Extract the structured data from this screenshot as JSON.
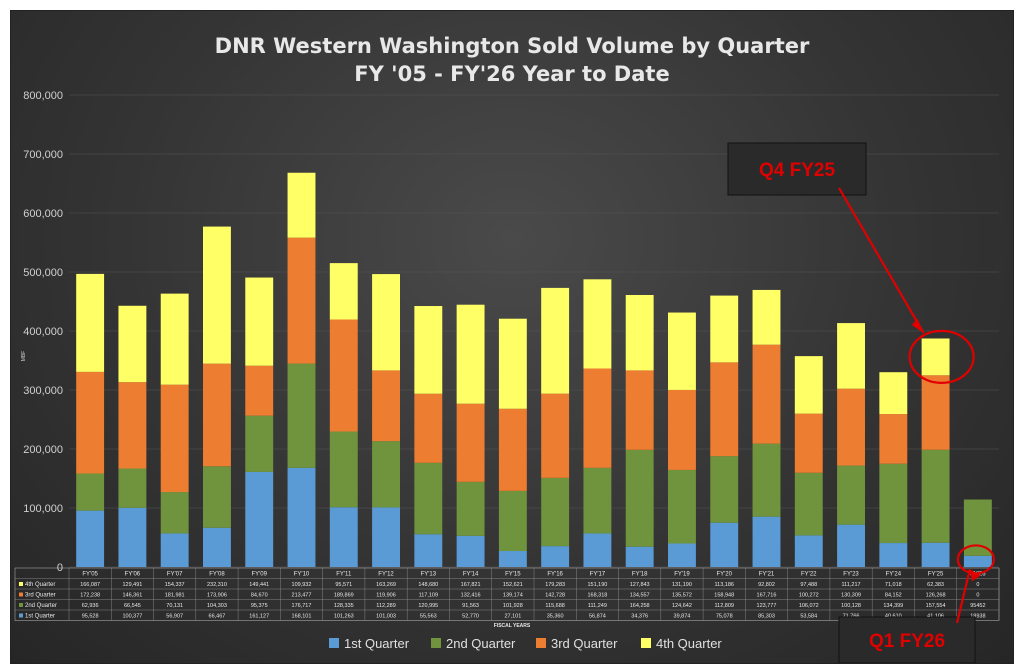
{
  "chart_data": {
    "type": "bar",
    "stacked": true,
    "title": "DNR Western Washington Sold Volume by Quarter",
    "subtitle": "FY '05 - FY'26 Year to Date",
    "ylabel": "MBF",
    "xlabel": "FISCAL YEARS",
    "ylim": [
      0,
      800000
    ],
    "yticks": [
      "0",
      "100,000",
      "200,000",
      "300,000",
      "400,000",
      "500,000",
      "600,000",
      "700,000",
      "800,000"
    ],
    "categories": [
      "FY'05",
      "FY'06",
      "FY'07",
      "FY'08",
      "FY'09",
      "FY'10",
      "FY'11",
      "FY'12",
      "FY'13",
      "FY'14",
      "FY'15",
      "FY'16",
      "FY'17",
      "FY'18",
      "FY'19",
      "FY'20",
      "FY'21",
      "FY'22",
      "FY'23",
      "FY'24",
      "FY'25",
      "FY'26"
    ],
    "series": [
      {
        "name": "1st Quarter",
        "color": "#5b9bd5",
        "values": [
          95528,
          100377,
          56907,
          66467,
          161127,
          168101,
          101263,
          101003,
          55563,
          52770,
          27101,
          35360,
          56874,
          34376,
          39874,
          75078,
          85303,
          53584,
          71766,
          40610,
          41106,
          18938
        ],
        "labels": [
          "95,528",
          "100,377",
          "56,907",
          "66,467",
          "161,127",
          "168,101",
          "101,263",
          "101,003",
          "55,563",
          "52,770",
          "27,101",
          "35,360",
          "56,874",
          "34,376",
          "39,874",
          "75,078",
          "85,303",
          "53,584",
          "71,766",
          "40,610",
          "41,106",
          "18938"
        ]
      },
      {
        "name": "2nd Quarter",
        "color": "#70943e",
        "values": [
          62936,
          66545,
          70131,
          104303,
          95375,
          176717,
          128335,
          112289,
          120995,
          91563,
          101928,
          115688,
          111249,
          164258,
          124642,
          112809,
          123777,
          106072,
          100128,
          134399,
          157554,
          95452
        ],
        "labels": [
          "62,936",
          "66,545",
          "70,131",
          "104,303",
          "95,375",
          "176,717",
          "128,335",
          "112,289",
          "120,995",
          "91,563",
          "101,928",
          "115,688",
          "111,249",
          "164,258",
          "124,642",
          "112,809",
          "123,777",
          "106,072",
          "100,128",
          "134,399",
          "157,554",
          "95452"
        ]
      },
      {
        "name": "3rd Quarter",
        "color": "#ed7d31",
        "values": [
          172238,
          146361,
          181981,
          173906,
          84670,
          213477,
          189869,
          119906,
          117109,
          132416,
          139174,
          142728,
          168318,
          134557,
          135572,
          158948,
          167716,
          100272,
          130309,
          84152,
          126268,
          0
        ],
        "labels": [
          "172,238",
          "146,361",
          "181,981",
          "173,906",
          "84,670",
          "213,477",
          "189,869",
          "119,906",
          "117,109",
          "132,416",
          "139,174",
          "142,728",
          "168,318",
          "134,557",
          "135,572",
          "158,948",
          "167,716",
          "100,272",
          "130,309",
          "84,152",
          "126,268",
          "0"
        ]
      },
      {
        "name": "4th Quarter",
        "color": "#ffff66",
        "values": [
          166087,
          129491,
          154337,
          232310,
          149441,
          109932,
          95571,
          163269,
          148680,
          167821,
          152621,
          179283,
          151190,
          127843,
          131190,
          113186,
          92802,
          97488,
          111217,
          71018,
          62383,
          0
        ],
        "labels": [
          "166,087",
          "129,491",
          "154,337",
          "232,310",
          "149,441",
          "109,932",
          "95,571",
          "163,269",
          "148,680",
          "167,821",
          "152,621",
          "179,283",
          "151,190",
          "127,843",
          "131,190",
          "113,186",
          "92,802",
          "97,488",
          "111,217",
          "71,018",
          "62,383",
          "0"
        ]
      }
    ],
    "table_rows_top_to_bottom": [
      "4th Quarter",
      "3rd Quarter",
      "2nd Quarter",
      "1st Quarter"
    ],
    "annotations": [
      {
        "text": "Q4 FY25",
        "target_category": "FY'25",
        "target_series": "4th Quarter"
      },
      {
        "text": "Q1 FY26",
        "target_category": "FY'26",
        "target_series": "1st Quarter"
      }
    ]
  }
}
